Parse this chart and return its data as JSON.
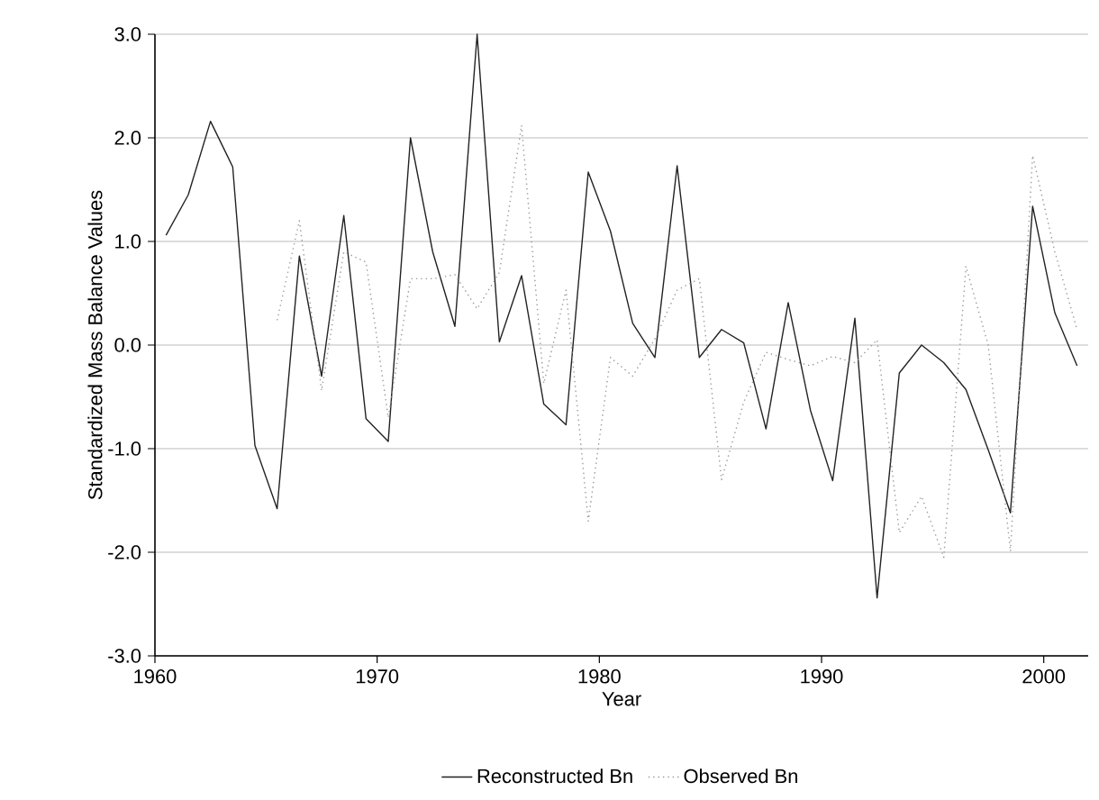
{
  "chart_data": {
    "type": "line",
    "xlabel": "Year",
    "ylabel": "Standardized Mass Balance Values",
    "xlim": [
      1960,
      2002
    ],
    "ylim": [
      -3,
      3
    ],
    "xticks": [
      1960,
      1970,
      1980,
      1990,
      2000
    ],
    "yticks": [
      {
        "value": -3,
        "label": "-3.0"
      },
      {
        "value": -2,
        "label": "-2.0"
      },
      {
        "value": -1,
        "label": "-1.0"
      },
      {
        "value": 0,
        "label": "0.0"
      },
      {
        "value": 1,
        "label": "1.0"
      },
      {
        "value": 2,
        "label": "2.0"
      },
      {
        "value": 3,
        "label": "3.0"
      }
    ],
    "grid": "y",
    "legend": "bottom",
    "marker": "none",
    "series": [
      {
        "name": "Reconstructed Bn",
        "color": "#222222",
        "line_style": "solid",
        "x": [
          1960.5,
          1961.5,
          1962.5,
          1963.5,
          1964.5,
          1965.5,
          1966.5,
          1967.5,
          1968.5,
          1969.5,
          1970.5,
          1971.5,
          1972.5,
          1973.5,
          1974.5,
          1975.5,
          1976.5,
          1977.5,
          1978.5,
          1979.5,
          1980.5,
          1981.5,
          1982.5,
          1983.5,
          1984.5,
          1985.5,
          1986.5,
          1987.5,
          1988.5,
          1989.5,
          1990.5,
          1991.5,
          1992.5,
          1993.5,
          1994.5,
          1995.5,
          1996.5,
          1997.5,
          1998.5,
          1999.5,
          2000.5,
          2001.5
        ],
        "values": [
          1.06,
          1.45,
          2.16,
          1.72,
          -0.97,
          -1.58,
          0.86,
          -0.3,
          1.25,
          -0.71,
          -0.93,
          2.0,
          0.9,
          0.18,
          3.0,
          0.03,
          0.67,
          -0.57,
          -0.77,
          1.67,
          1.1,
          0.21,
          -0.12,
          1.73,
          -0.12,
          0.15,
          0.02,
          -0.81,
          0.41,
          -0.63,
          -1.31,
          0.26,
          -2.44,
          -0.27,
          0.0,
          -0.17,
          -0.43,
          -1.01,
          -1.62,
          1.34,
          0.31,
          -0.2
        ]
      },
      {
        "name": "Observed Bn",
        "color": "#999999",
        "line_style": "dotted",
        "x": [
          1965.5,
          1966.5,
          1967.5,
          1968.5,
          1969.5,
          1970.5,
          1971.5,
          1972.5,
          1973.5,
          1974.5,
          1975.5,
          1976.5,
          1977.5,
          1978.5,
          1979.5,
          1980.5,
          1981.5,
          1982.5,
          1983.5,
          1984.5,
          1985.5,
          1986.5,
          1987.5,
          1988.5,
          1989.5,
          1990.5,
          1991.5,
          1992.5,
          1993.5,
          1994.5,
          1995.5,
          1996.5,
          1997.5,
          1998.5,
          1999.5,
          2000.5,
          2001.5
        ],
        "values": [
          0.24,
          1.2,
          -0.44,
          0.9,
          0.8,
          -0.7,
          0.64,
          0.64,
          0.68,
          0.35,
          0.7,
          2.12,
          -0.37,
          0.53,
          -1.7,
          -0.12,
          -0.3,
          0.06,
          0.53,
          0.64,
          -1.3,
          -0.55,
          -0.07,
          -0.14,
          -0.2,
          -0.11,
          -0.17,
          0.05,
          -1.81,
          -1.46,
          -2.05,
          0.76,
          0.0,
          -1.99,
          1.83,
          0.9,
          0.15
        ]
      }
    ]
  }
}
